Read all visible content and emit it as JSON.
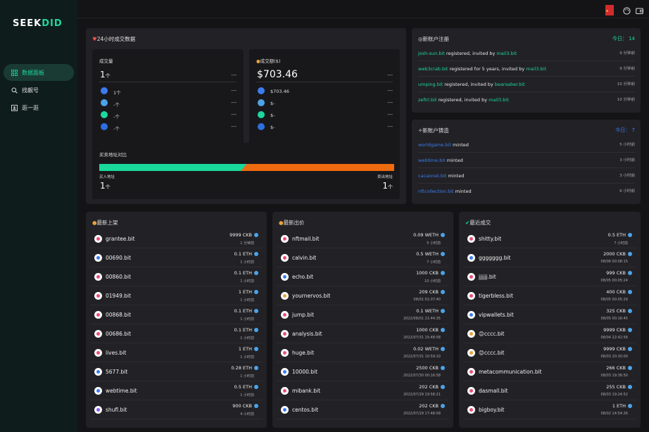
{
  "app": {
    "logo_a": "SEEK",
    "logo_b": "DID"
  },
  "sidebar": {
    "items": [
      {
        "label": "数据面板",
        "icon": "dashboard-icon",
        "active": true
      },
      {
        "label": "找靓号",
        "icon": "search-icon",
        "active": false
      },
      {
        "label": "逛一逛",
        "icon": "browse-icon",
        "active": false
      }
    ]
  },
  "topbar": {
    "icons": [
      "china-flag-icon",
      "palette-icon",
      "wallet-icon"
    ]
  },
  "stats24h": {
    "title": "24小时成交数据",
    "volume": {
      "label": "成交量",
      "value": "1",
      "unit": "个",
      "dash": "---",
      "rows": [
        {
          "icon": "ckb-chain-icon",
          "value": "1",
          "unit": "个",
          "dash": "---"
        },
        {
          "icon": "eth-chain-icon",
          "value": "-",
          "unit": "个",
          "dash": "---"
        },
        {
          "icon": "bsc-chain-icon",
          "value": "-",
          "unit": "个",
          "dash": "---"
        },
        {
          "icon": "polygon-chain-icon",
          "value": "-",
          "unit": "个",
          "dash": "---"
        }
      ]
    },
    "amount": {
      "label": "成交额($)",
      "value": "$703.46",
      "dash": "---",
      "rows": [
        {
          "icon": "ckb-chain-icon",
          "value": "$703.46",
          "dash": "---"
        },
        {
          "icon": "eth-chain-icon",
          "value": "$-",
          "dash": "---"
        },
        {
          "icon": "bsc-chain-icon",
          "value": "$-",
          "dash": "---"
        },
        {
          "icon": "polygon-chain-icon",
          "value": "$-",
          "dash": "---"
        }
      ]
    },
    "buysell": {
      "label": "买卖地址对比",
      "buy_label": "买入地址",
      "buy_value": "1",
      "sell_label": "卖出地址",
      "sell_value": "1",
      "unit": "个",
      "buy_fraction": 0.5
    }
  },
  "registrations": {
    "title": "新账户注册",
    "today_label": "今日：",
    "today_value": "14",
    "rows": [
      {
        "account": "josh-sun.bit",
        "text": "registered, invited by",
        "inviter": "mail3.bit",
        "time": "9 分钟前"
      },
      {
        "account": "web3crab.bit",
        "text": "registered for 5 years, invited by",
        "inviter": "mail3.bit",
        "time": "9 分钟前"
      },
      {
        "account": "umping.bit",
        "text": "registered, invited by",
        "inviter": "bearsaber.bit",
        "time": "10 分钟前"
      },
      {
        "account": "zefirl.bit",
        "text": "registered, invited by",
        "inviter": "mail3.bit",
        "time": "10 分钟前"
      }
    ]
  },
  "mints": {
    "title": "新账户铸造",
    "today_label": "今日：",
    "today_value": "7",
    "rows": [
      {
        "account": "worldgame.bit",
        "text": "minted",
        "time": "5 小时前"
      },
      {
        "account": "webtime.bit",
        "text": "minted",
        "time": "3 小时前"
      },
      {
        "account": "cacaonet.bit",
        "text": "minted",
        "time": "3 小时前"
      },
      {
        "account": "nftcollection.bit",
        "text": "minted",
        "time": "6 小时前"
      }
    ]
  },
  "listings": {
    "title": "最新上架",
    "rows": [
      {
        "name": "grantee.bit",
        "price": "9999 CKB",
        "time": "1 分钟前",
        "color": "#e94f7a"
      },
      {
        "name": "00690.bit",
        "price": "0.1 ETH",
        "time": "1 小时前",
        "color": "#3c7bef"
      },
      {
        "name": "00860.bit",
        "price": "0.1 ETH",
        "time": "1 小时前",
        "color": "#e94f7a"
      },
      {
        "name": "01949.bit",
        "price": "1 ETH",
        "time": "1 小时前",
        "color": "#e94f7a"
      },
      {
        "name": "00868.bit",
        "price": "0.1 ETH",
        "time": "1 小时前",
        "color": "#e94f7a"
      },
      {
        "name": "00686.bit",
        "price": "0.1 ETH",
        "time": "1 小时前",
        "color": "#e94f7a"
      },
      {
        "name": "lives.bit",
        "price": "1 ETH",
        "time": "1 小时前",
        "color": "#e94f7a"
      },
      {
        "name": "5677.bit",
        "price": "0.28 ETH",
        "time": "1 小时前",
        "color": "#3c7bef"
      },
      {
        "name": "webtime.bit",
        "price": "0.5 ETH",
        "time": "1 小时前",
        "color": "#3c7bef"
      },
      {
        "name": "shufl.bit",
        "price": "900 CKB",
        "time": "4 小时前",
        "color": "#8a5cf6"
      }
    ]
  },
  "offers": {
    "title": "最新出价",
    "rows": [
      {
        "name": "nftmail.bit",
        "price": "0.09 WETH",
        "time": "5 小时前",
        "color": "#e94f7a"
      },
      {
        "name": "calvin.bit",
        "price": "0.5 WETH",
        "time": "7 小时前",
        "color": "#e94f7a"
      },
      {
        "name": "echo.bit",
        "price": "1000 CKB",
        "time": "10 小时前",
        "color": "#3c7bef"
      },
      {
        "name": "yournervos.bit",
        "price": "209 CKB",
        "time": "08/01 01:07:40",
        "color": "#e9a23b"
      },
      {
        "name": "jump.bit",
        "price": "0.1 WETH",
        "time": "2022/08/01 21:44:35",
        "color": "#e94f7a"
      },
      {
        "name": "analysis.bit",
        "price": "1000 CKB",
        "time": "2022/07/31 15:48:58",
        "color": "#e94f7a"
      },
      {
        "name": "huge.bit",
        "price": "0.02 WETH",
        "time": "2022/07/31 10:59:10",
        "color": "#e94f7a"
      },
      {
        "name": "10000.bit",
        "price": "2500 CKB",
        "time": "2022/07/30 00:16:58",
        "color": "#3c7bef"
      },
      {
        "name": "mibank.bit",
        "price": "202 CKB",
        "time": "2022/07/29 19:58:21",
        "color": "#e94f7a"
      },
      {
        "name": "centos.bit",
        "price": "202 CKB",
        "time": "2022/07/29 17:48:09",
        "color": "#3c7bef"
      }
    ]
  },
  "deals": {
    "title": "最近成交",
    "rows": [
      {
        "name": "shitty.bit",
        "price": "0.5 ETH",
        "time": "7 小时前",
        "color": "#e94f7a"
      },
      {
        "name": "ggggggg.bit",
        "price": "2000 CKB",
        "time": "08/06 00:08:15",
        "color": "#3c7bef"
      },
      {
        "name": "jjjjjj.bit",
        "price": "999 CKB",
        "time": "08/05 00:05:24",
        "color": "#e94f7a"
      },
      {
        "name": "tigerbless.bit",
        "price": "400 CKB",
        "time": "08/05 00:05:29",
        "color": "#e94f7a"
      },
      {
        "name": "vipwallets.bit",
        "price": "325 CKB",
        "time": "08/05 00:16:45",
        "color": "#3c7bef"
      },
      {
        "name": "😊cccc.bit",
        "price": "9999 CKB",
        "time": "08/04 22:42:56",
        "color": "#e9a23b"
      },
      {
        "name": "😊cccc.bit",
        "price": "9999 CKB",
        "time": "08/03 20:30:00",
        "color": "#e9a23b"
      },
      {
        "name": "metacommunication.bit",
        "price": "266 CKB",
        "time": "08/03 19:36:50",
        "color": "#e94f7a"
      },
      {
        "name": "dasmall.bit",
        "price": "255 CKB",
        "time": "08/03 19:24:52",
        "color": "#e94f7a"
      },
      {
        "name": "bigboy.bit",
        "price": "1 ETH",
        "time": "08/02 14:54:26",
        "color": "#e94f7a"
      }
    ]
  }
}
